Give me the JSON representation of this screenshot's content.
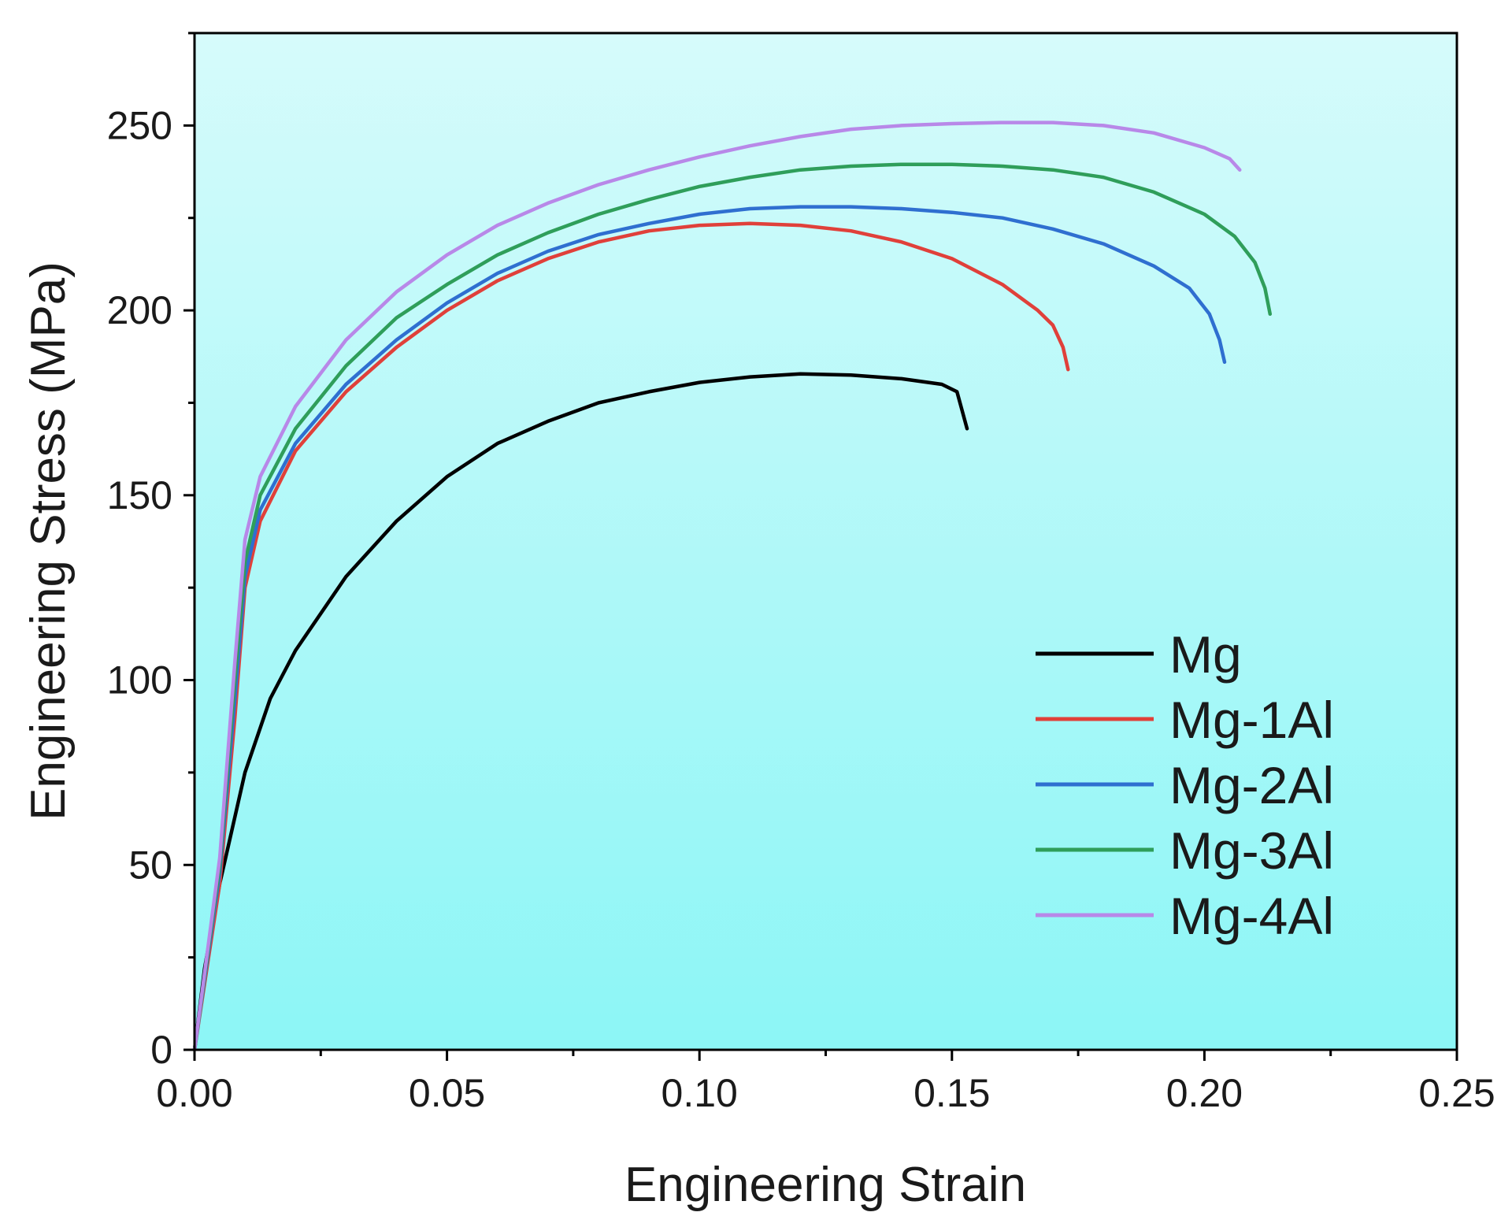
{
  "chart_data": {
    "type": "line",
    "title": "",
    "xlabel": "Engineering Strain",
    "ylabel": "Engineering Stress (MPa)",
    "xlim": [
      0,
      0.25
    ],
    "ylim": [
      0,
      275
    ],
    "grid": false,
    "legend_position": "bottom-right",
    "x_ticks": [
      0.0,
      0.05,
      0.1,
      0.15,
      0.2,
      0.25
    ],
    "x_tick_labels": [
      "0.00",
      "0.05",
      "0.10",
      "0.15",
      "0.20",
      "0.25"
    ],
    "y_ticks": [
      0,
      50,
      100,
      150,
      200,
      250
    ],
    "y_tick_labels": [
      "0",
      "50",
      "100",
      "150",
      "200",
      "250"
    ],
    "background_gradient": [
      "#d6fbfb",
      "#8cf6f6"
    ],
    "series": [
      {
        "name": "Mg",
        "color": "#000000",
        "points": [
          [
            0,
            0
          ],
          [
            0.002,
            22
          ],
          [
            0.005,
            45
          ],
          [
            0.01,
            75
          ],
          [
            0.015,
            95
          ],
          [
            0.02,
            108
          ],
          [
            0.03,
            128
          ],
          [
            0.04,
            143
          ],
          [
            0.05,
            155
          ],
          [
            0.06,
            164
          ],
          [
            0.07,
            170
          ],
          [
            0.08,
            175
          ],
          [
            0.09,
            178
          ],
          [
            0.1,
            180.5
          ],
          [
            0.11,
            182
          ],
          [
            0.12,
            182.8
          ],
          [
            0.13,
            182.5
          ],
          [
            0.14,
            181.5
          ],
          [
            0.148,
            180
          ],
          [
            0.151,
            178
          ],
          [
            0.152,
            173
          ],
          [
            0.153,
            168
          ]
        ]
      },
      {
        "name": "Mg-1Al",
        "color": "#e0403a",
        "points": [
          [
            0,
            0
          ],
          [
            0.005,
            45
          ],
          [
            0.008,
            90
          ],
          [
            0.01,
            125
          ],
          [
            0.013,
            143
          ],
          [
            0.02,
            162
          ],
          [
            0.03,
            178
          ],
          [
            0.04,
            190
          ],
          [
            0.05,
            200
          ],
          [
            0.06,
            208
          ],
          [
            0.07,
            214
          ],
          [
            0.08,
            218.5
          ],
          [
            0.09,
            221.5
          ],
          [
            0.1,
            223
          ],
          [
            0.11,
            223.5
          ],
          [
            0.12,
            223
          ],
          [
            0.13,
            221.5
          ],
          [
            0.14,
            218.5
          ],
          [
            0.15,
            214
          ],
          [
            0.16,
            207
          ],
          [
            0.167,
            200
          ],
          [
            0.17,
            196
          ],
          [
            0.172,
            190
          ],
          [
            0.173,
            184
          ]
        ]
      },
      {
        "name": "Mg-2Al",
        "color": "#2f6fd0",
        "points": [
          [
            0,
            0
          ],
          [
            0.005,
            48
          ],
          [
            0.008,
            95
          ],
          [
            0.01,
            128
          ],
          [
            0.013,
            146
          ],
          [
            0.02,
            164
          ],
          [
            0.03,
            180
          ],
          [
            0.04,
            192
          ],
          [
            0.05,
            202
          ],
          [
            0.06,
            210
          ],
          [
            0.07,
            216
          ],
          [
            0.08,
            220.5
          ],
          [
            0.09,
            223.5
          ],
          [
            0.1,
            226
          ],
          [
            0.11,
            227.5
          ],
          [
            0.12,
            228
          ],
          [
            0.13,
            228
          ],
          [
            0.14,
            227.5
          ],
          [
            0.15,
            226.5
          ],
          [
            0.16,
            225
          ],
          [
            0.17,
            222
          ],
          [
            0.18,
            218
          ],
          [
            0.19,
            212
          ],
          [
            0.197,
            206
          ],
          [
            0.201,
            199
          ],
          [
            0.203,
            192
          ],
          [
            0.204,
            186
          ]
        ]
      },
      {
        "name": "Mg-3Al",
        "color": "#2f9e5a",
        "points": [
          [
            0,
            0
          ],
          [
            0.005,
            50
          ],
          [
            0.008,
            100
          ],
          [
            0.01,
            132
          ],
          [
            0.013,
            150
          ],
          [
            0.02,
            168
          ],
          [
            0.03,
            185
          ],
          [
            0.04,
            198
          ],
          [
            0.05,
            207
          ],
          [
            0.06,
            215
          ],
          [
            0.07,
            221
          ],
          [
            0.08,
            226
          ],
          [
            0.09,
            230
          ],
          [
            0.1,
            233.5
          ],
          [
            0.11,
            236
          ],
          [
            0.12,
            238
          ],
          [
            0.13,
            239
          ],
          [
            0.14,
            239.5
          ],
          [
            0.15,
            239.5
          ],
          [
            0.16,
            239
          ],
          [
            0.17,
            238
          ],
          [
            0.18,
            236
          ],
          [
            0.19,
            232
          ],
          [
            0.2,
            226
          ],
          [
            0.206,
            220
          ],
          [
            0.21,
            213
          ],
          [
            0.212,
            206
          ],
          [
            0.213,
            199
          ]
        ]
      },
      {
        "name": "Mg-4Al",
        "color": "#b888e8",
        "points": [
          [
            0,
            0
          ],
          [
            0.005,
            52
          ],
          [
            0.008,
            105
          ],
          [
            0.01,
            138
          ],
          [
            0.013,
            155
          ],
          [
            0.02,
            174
          ],
          [
            0.03,
            192
          ],
          [
            0.04,
            205
          ],
          [
            0.05,
            215
          ],
          [
            0.06,
            223
          ],
          [
            0.07,
            229
          ],
          [
            0.08,
            234
          ],
          [
            0.09,
            238
          ],
          [
            0.1,
            241.5
          ],
          [
            0.11,
            244.5
          ],
          [
            0.12,
            247
          ],
          [
            0.13,
            249
          ],
          [
            0.14,
            250
          ],
          [
            0.15,
            250.5
          ],
          [
            0.16,
            250.8
          ],
          [
            0.17,
            250.8
          ],
          [
            0.18,
            250
          ],
          [
            0.19,
            248
          ],
          [
            0.2,
            244
          ],
          [
            0.205,
            241
          ],
          [
            0.207,
            238
          ]
        ]
      }
    ]
  }
}
